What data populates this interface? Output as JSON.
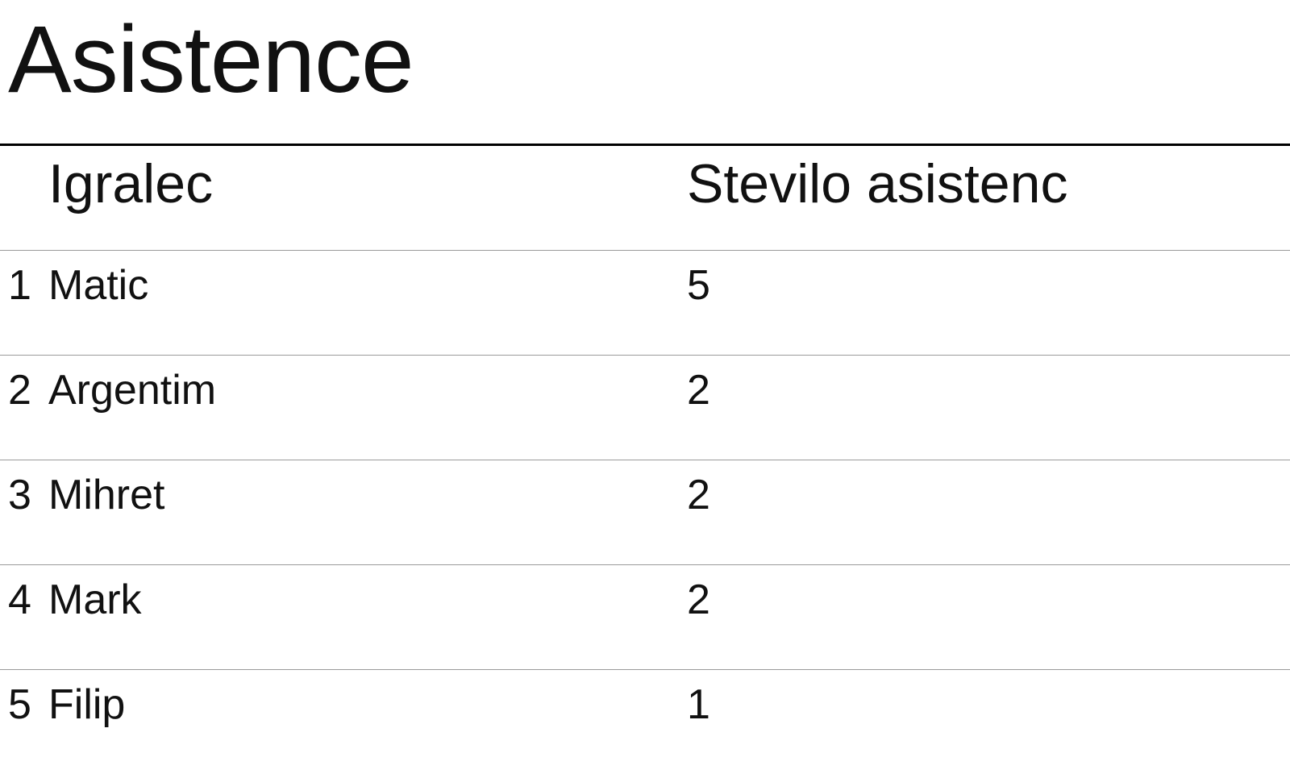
{
  "title": "Asistence",
  "table": {
    "headers": {
      "player": "Igralec",
      "count": "Stevilo asistenc"
    },
    "rows": [
      {
        "rank": "1",
        "name": "Matic",
        "count": "5"
      },
      {
        "rank": "2",
        "name": "Argentim",
        "count": "2"
      },
      {
        "rank": "3",
        "name": "Mihret",
        "count": "2"
      },
      {
        "rank": "4",
        "name": "Mark",
        "count": "2"
      },
      {
        "rank": "5",
        "name": "Filip",
        "count": "1"
      }
    ]
  }
}
